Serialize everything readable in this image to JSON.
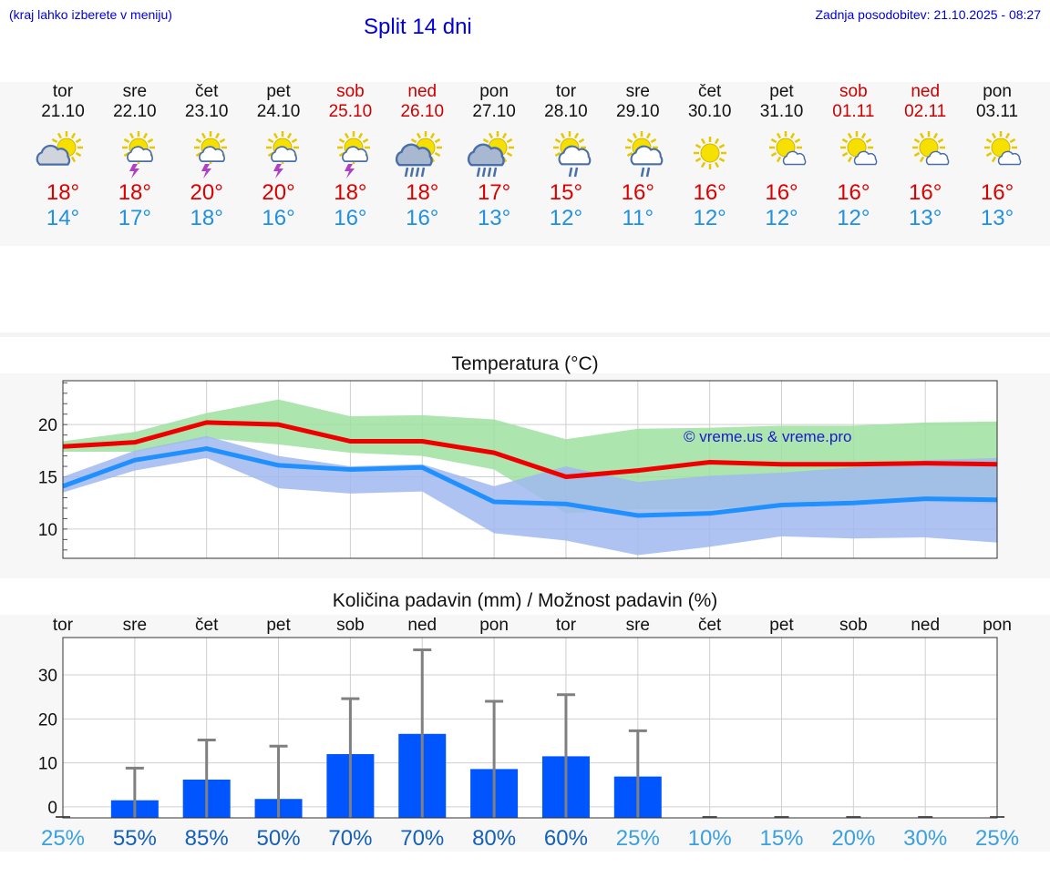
{
  "header": {
    "city_hint": "(kraj lahko izberete v meniju)",
    "title": "Split 14 dni",
    "updated": "Zadnja posodobitev: 21.10.2025 - 08:27"
  },
  "colors": {
    "max_temp": "#ee0000",
    "min_temp": "#2090ff",
    "max_band": "#9fe0a0",
    "min_band": "#a0b8f0",
    "overlap_band": "#74c4a0",
    "precip_bar": "#0055ff",
    "precip_error": "#808080",
    "header_blue": "#0000dd"
  },
  "days": [
    {
      "name": "tor",
      "date": "21.10",
      "weekend": false,
      "icon": "partly-cloudy-icon",
      "tmax": "18°",
      "tmin": "14°"
    },
    {
      "name": "sre",
      "date": "22.10",
      "weekend": false,
      "icon": "sun-thunder-icon",
      "tmax": "18°",
      "tmin": "17°"
    },
    {
      "name": "čet",
      "date": "23.10",
      "weekend": false,
      "icon": "sun-thunder-icon",
      "tmax": "20°",
      "tmin": "18°"
    },
    {
      "name": "pet",
      "date": "24.10",
      "weekend": false,
      "icon": "sun-thunder-icon",
      "tmax": "20°",
      "tmin": "16°"
    },
    {
      "name": "sob",
      "date": "25.10",
      "weekend": true,
      "icon": "sun-thunder-icon",
      "tmax": "18°",
      "tmin": "16°"
    },
    {
      "name": "ned",
      "date": "26.10",
      "weekend": true,
      "icon": "sun-rain-icon",
      "tmax": "18°",
      "tmin": "16°"
    },
    {
      "name": "pon",
      "date": "27.10",
      "weekend": false,
      "icon": "sun-rain-icon",
      "tmax": "17°",
      "tmin": "13°"
    },
    {
      "name": "tor",
      "date": "28.10",
      "weekend": false,
      "icon": "sun-showers-icon",
      "tmax": "15°",
      "tmin": "12°"
    },
    {
      "name": "sre",
      "date": "29.10",
      "weekend": false,
      "icon": "sun-showers-icon",
      "tmax": "16°",
      "tmin": "11°"
    },
    {
      "name": "čet",
      "date": "30.10",
      "weekend": false,
      "icon": "sun-icon",
      "tmax": "16°",
      "tmin": "12°"
    },
    {
      "name": "pet",
      "date": "31.10",
      "weekend": false,
      "icon": "sun-small-cloud-icon",
      "tmax": "16°",
      "tmin": "12°"
    },
    {
      "name": "sob",
      "date": "01.11",
      "weekend": true,
      "icon": "sun-small-cloud-icon",
      "tmax": "16°",
      "tmin": "12°"
    },
    {
      "name": "ned",
      "date": "02.11",
      "weekend": true,
      "icon": "sun-small-cloud-icon",
      "tmax": "16°",
      "tmin": "13°"
    },
    {
      "name": "pon",
      "date": "03.11",
      "weekend": false,
      "icon": "sun-small-cloud-icon",
      "tmax": "16°",
      "tmin": "13°"
    }
  ],
  "chart_data": [
    {
      "type": "line",
      "title": "Temperatura (°C)",
      "x": [
        "21.10",
        "22.10",
        "23.10",
        "24.10",
        "25.10",
        "26.10",
        "27.10",
        "28.10",
        "29.10",
        "30.10",
        "31.10",
        "01.11",
        "02.11",
        "03.11"
      ],
      "ylim": [
        7.2,
        24.2
      ],
      "yticks": [
        10,
        15,
        20
      ],
      "watermark": "© vreme.us & vreme.pro",
      "grid": true,
      "series": [
        {
          "values": [
            17.9,
            18.3,
            20.2,
            20.0,
            18.4,
            18.4,
            17.3,
            15.0,
            15.6,
            16.4,
            16.2,
            16.2,
            16.3,
            16.2
          ]
        },
        {
          "values": [
            14.1,
            16.6,
            17.7,
            16.1,
            15.7,
            15.9,
            12.6,
            12.4,
            11.3,
            11.5,
            12.3,
            12.5,
            12.9,
            12.8
          ]
        }
      ],
      "bands": [
        {
          "lower": [
            17.4,
            17.4,
            18.7,
            18.1,
            17.3,
            17.0,
            15.7,
            11.5,
            11.9,
            11.9,
            12.4,
            12.5,
            12.6,
            12.4
          ],
          "upper": [
            18.4,
            19.3,
            21.1,
            22.4,
            20.8,
            20.9,
            20.5,
            18.6,
            19.6,
            19.7,
            19.9,
            19.9,
            20.2,
            20.3
          ]
        },
        {
          "lower": [
            13.5,
            15.6,
            16.8,
            13.9,
            13.4,
            13.6,
            9.6,
            8.9,
            7.5,
            8.3,
            9.3,
            9.1,
            9.2,
            8.7
          ],
          "upper": [
            15.0,
            17.5,
            18.9,
            17.0,
            16.0,
            16.2,
            14.1,
            16.0,
            14.5,
            15.1,
            15.4,
            15.9,
            16.6,
            16.8
          ]
        }
      ]
    },
    {
      "type": "bar",
      "title": "Količina padavin (mm) / Možnost padavin (%)",
      "categories": [
        "tor",
        "sre",
        "čet",
        "pet",
        "sob",
        "ned",
        "pon",
        "tor",
        "sre",
        "čet",
        "pet",
        "sob",
        "ned",
        "pon"
      ],
      "values": [
        0,
        1.5,
        6.2,
        1.8,
        12.0,
        16.6,
        8.6,
        11.5,
        6.9,
        0,
        0,
        0,
        0,
        0
      ],
      "error_upper": [
        0,
        8.8,
        15.2,
        13.8,
        24.6,
        35.7,
        24.0,
        25.5,
        17.3,
        0,
        0,
        0,
        0,
        0
      ],
      "probability": [
        "25%",
        "55%",
        "85%",
        "50%",
        "70%",
        "70%",
        "80%",
        "60%",
        "25%",
        "10%",
        "15%",
        "20%",
        "30%",
        "25%"
      ],
      "probability_level": [
        25,
        55,
        85,
        50,
        70,
        70,
        80,
        60,
        25,
        10,
        15,
        20,
        30,
        25
      ],
      "ylim": [
        -2.5,
        38.5
      ],
      "yticks": [
        0,
        10,
        20,
        30
      ],
      "grid": true
    }
  ]
}
